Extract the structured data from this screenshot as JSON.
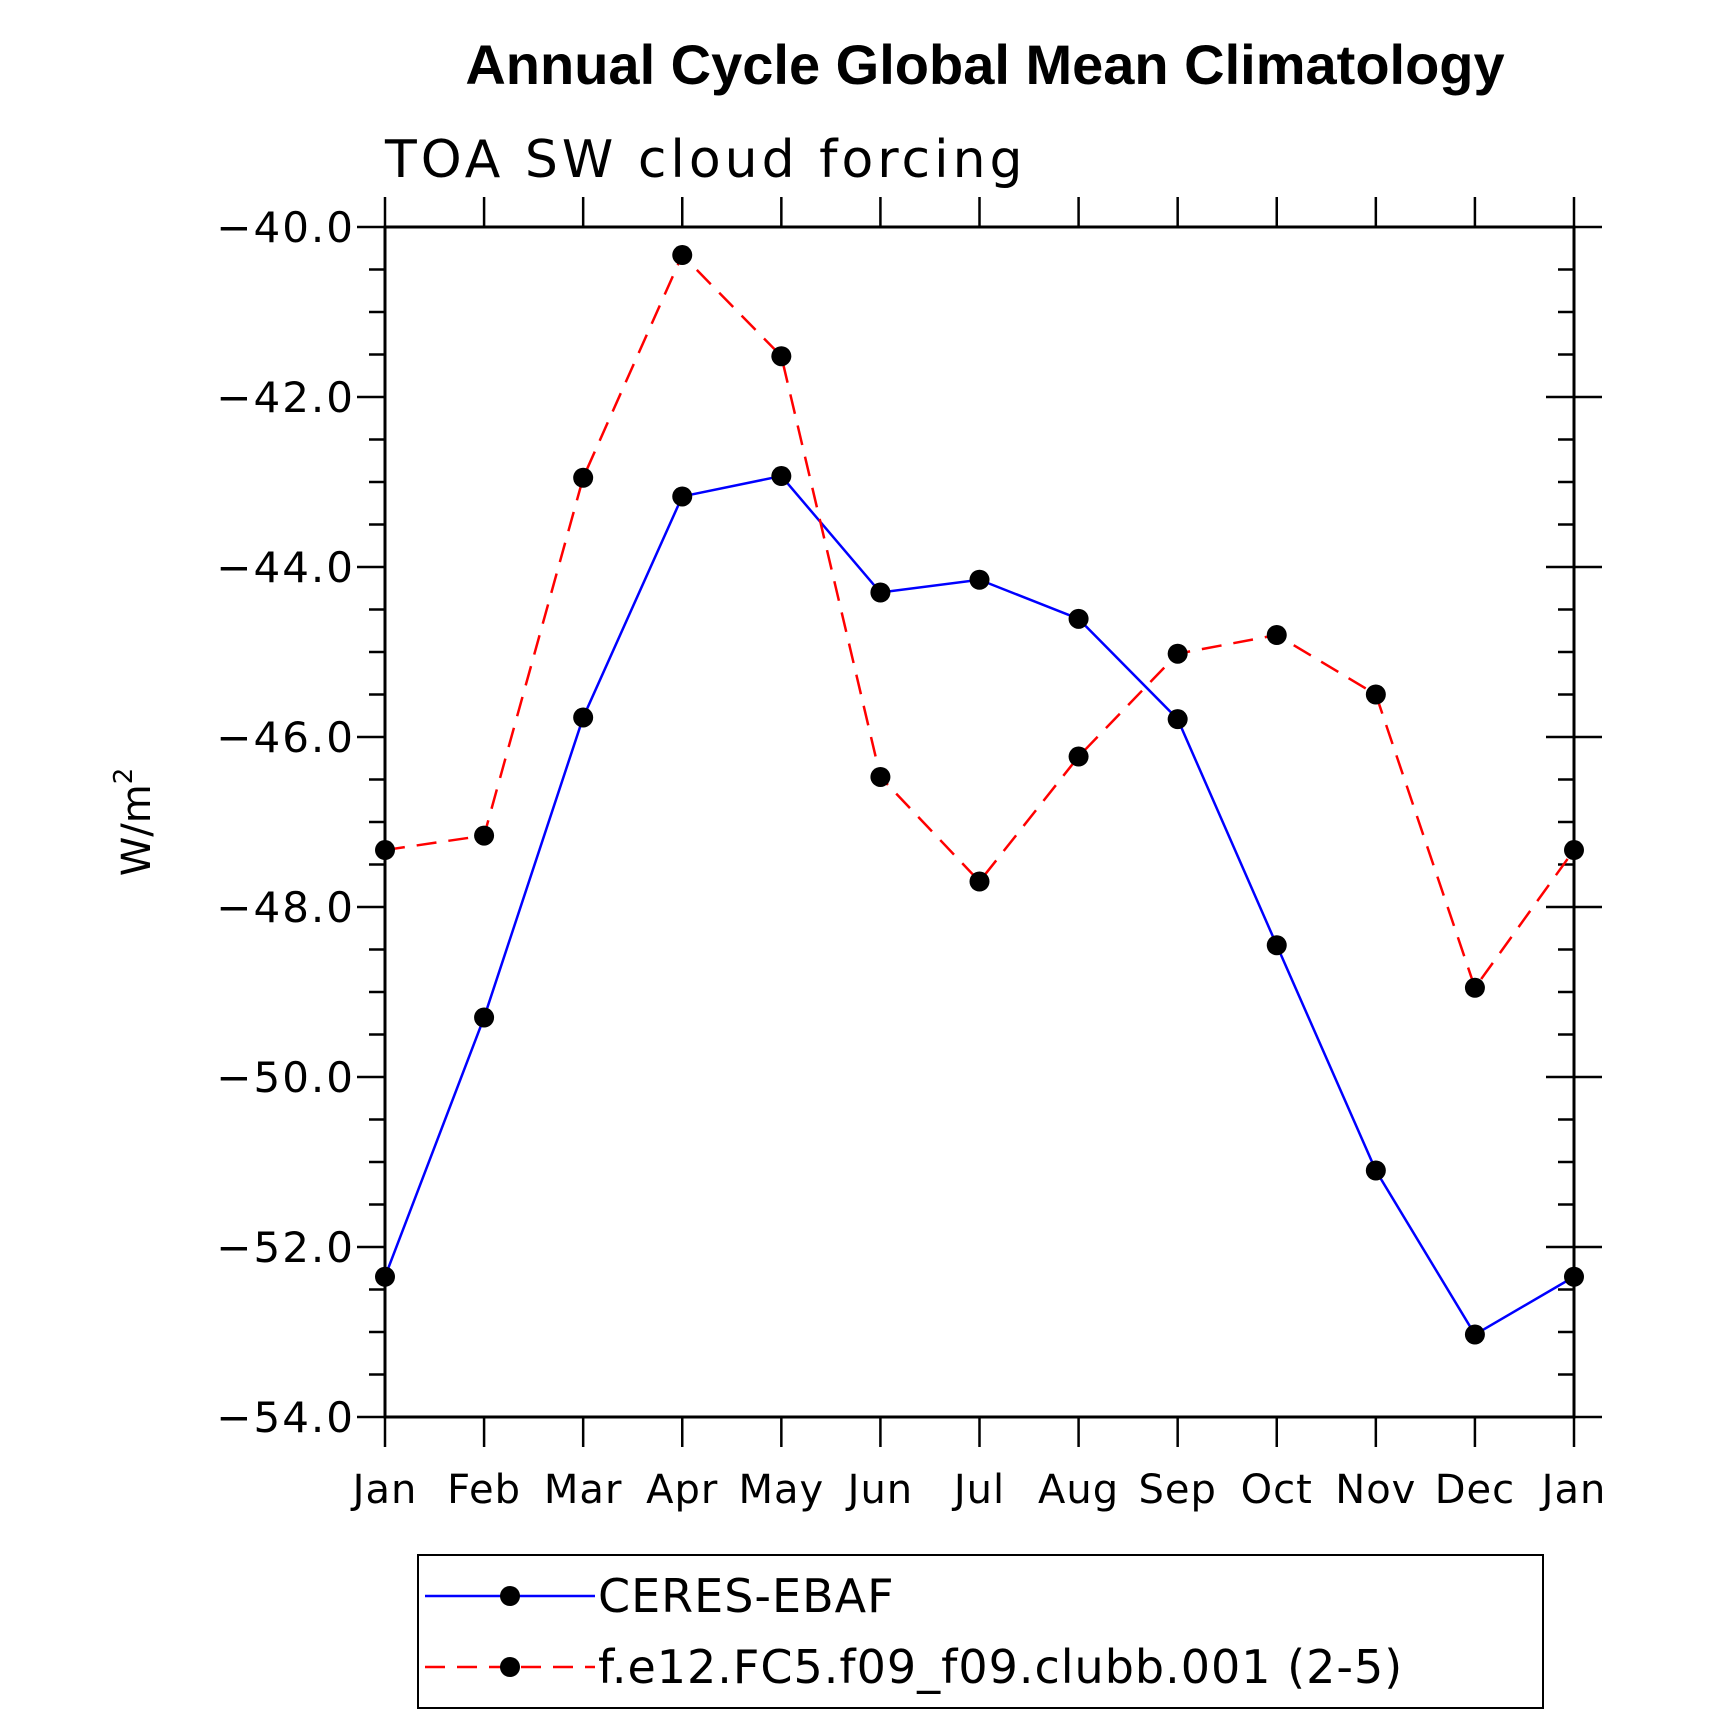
{
  "chart_data": {
    "type": "line",
    "title": "Annual Cycle Global Mean Climatology",
    "subtitle": "TOA SW cloud forcing",
    "ylabel": "W/m",
    "ylabel_superscript": "2",
    "xlabel": "",
    "categories": [
      "Jan",
      "Feb",
      "Mar",
      "Apr",
      "May",
      "Jun",
      "Jul",
      "Aug",
      "Sep",
      "Oct",
      "Nov",
      "Dec",
      "Jan"
    ],
    "ylim": [
      -54.0,
      -40.0
    ],
    "yticks": [
      "-40.0",
      "-42.0",
      "-44.0",
      "-46.0",
      "-48.0",
      "-50.0",
      "-52.0",
      "-54.0"
    ],
    "ytick_values": [
      -40,
      -42,
      -44,
      -46,
      -48,
      -50,
      -52,
      -54
    ],
    "legend_position": "bottom",
    "series": [
      {
        "name": "CERES-EBAF",
        "color": "#0000ff",
        "dash": "solid",
        "values": [
          -52.35,
          -49.3,
          -45.77,
          -43.17,
          -42.93,
          -44.3,
          -44.15,
          -44.61,
          -45.79,
          -48.45,
          -51.1,
          -53.03,
          -52.35
        ]
      },
      {
        "name": "f.e12.FC5.f09_f09.clubb.001 (2-5)",
        "color": "#ff0000",
        "dash": "dashed",
        "values": [
          -47.33,
          -47.16,
          -42.95,
          -40.33,
          -41.52,
          -46.47,
          -47.7,
          -46.23,
          -45.02,
          -44.8,
          -45.5,
          -48.95,
          -47.33
        ]
      }
    ]
  }
}
